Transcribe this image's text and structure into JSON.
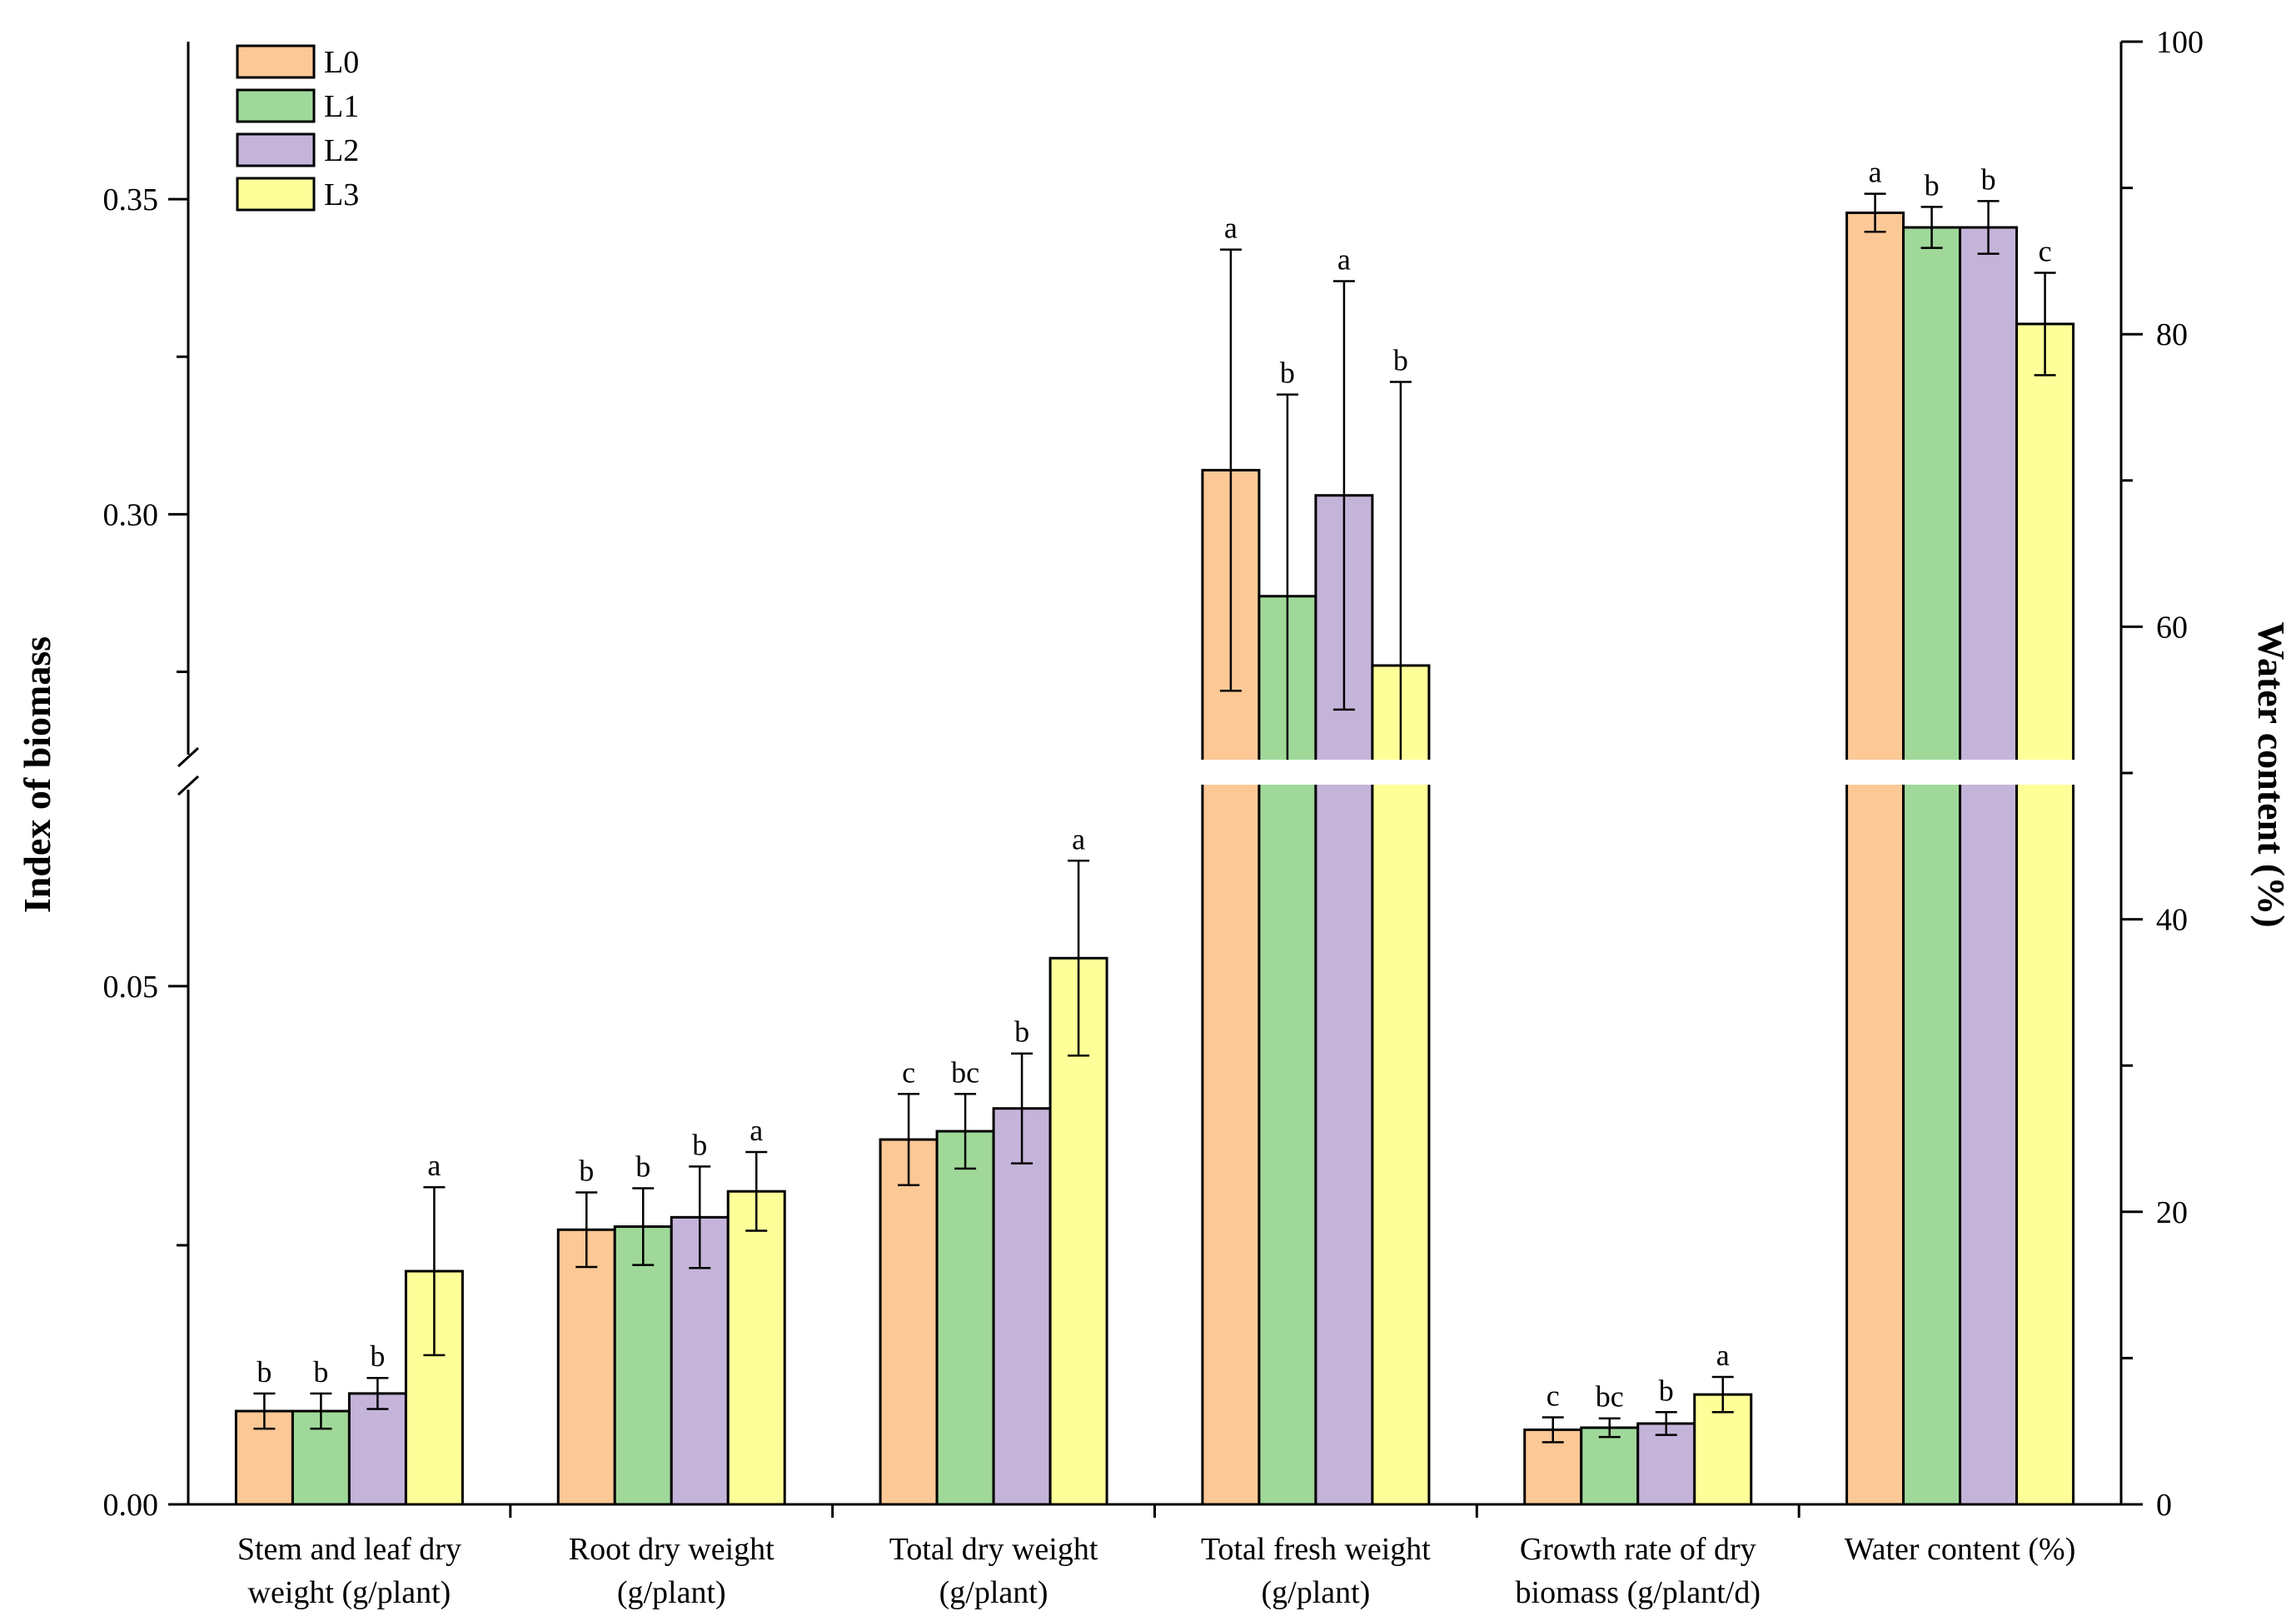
{
  "chart_data": {
    "type": "bar",
    "ylabel": "Index of biomass",
    "y2label": "Water content (%)",
    "left_axis": {
      "break": true,
      "lower_segment_range": [
        0,
        0.07
      ],
      "upper_segment_range": [
        0.26,
        0.375
      ],
      "tick_labels": [
        "0.00",
        "0.05",
        "0.30",
        "0.35"
      ],
      "tick_values": [
        0,
        0.05,
        0.3,
        0.35
      ]
    },
    "right_axis": {
      "range": [
        0,
        100
      ],
      "tick_labels": [
        "0",
        "20",
        "40",
        "60",
        "80",
        "100"
      ],
      "tick_values": [
        0,
        20,
        40,
        60,
        80,
        100
      ]
    },
    "categories": [
      [
        "Stem and leaf dry",
        "weight (g/plant)"
      ],
      [
        "Root dry weight",
        "(g/plant)"
      ],
      [
        "Total dry weight",
        "(g/plant)"
      ],
      [
        "Total fresh weight",
        "(g/plant)"
      ],
      [
        "Growth rate of dry",
        "biomass (g/plant/d)"
      ],
      [
        "Water content (%)"
      ]
    ],
    "category_axis": [
      "left",
      "left",
      "left",
      "left",
      "left",
      "right"
    ],
    "series": [
      {
        "name": "L0",
        "color": "#FCC896",
        "values": [
          0.009,
          0.0265,
          0.0352,
          0.307,
          0.0072,
          88.3
        ],
        "errors": [
          0.0017,
          0.0036,
          0.0044,
          0.035,
          0.0012,
          1.3
        ],
        "letters": [
          "b",
          "b",
          "c",
          "a",
          "c",
          "a"
        ]
      },
      {
        "name": "L1",
        "color": "#A0D89A",
        "values": [
          0.009,
          0.0268,
          0.036,
          0.287,
          0.0074,
          87.3
        ],
        "errors": [
          0.0017,
          0.0037,
          0.0036,
          0.032,
          0.0009,
          1.4
        ],
        "letters": [
          "b",
          "b",
          "bc",
          "b",
          "bc",
          "b"
        ]
      },
      {
        "name": "L2",
        "color": "#C5B4DA",
        "values": [
          0.0107,
          0.0277,
          0.0382,
          0.303,
          0.0078,
          87.3
        ],
        "errors": [
          0.0015,
          0.0049,
          0.0053,
          0.034,
          0.0011,
          1.8
        ],
        "letters": [
          "b",
          "b",
          "b",
          "a",
          "b",
          "b"
        ]
      },
      {
        "name": "L3",
        "color": "#FFFF99",
        "values": [
          0.0225,
          0.0302,
          0.0527,
          0.276,
          0.0106,
          80.7
        ],
        "errors": [
          0.0081,
          0.0038,
          0.0094,
          0.045,
          0.0017,
          3.5
        ],
        "letters": [
          "a",
          "a",
          "a",
          "b",
          "a",
          "c"
        ]
      }
    ],
    "legend": "top-left",
    "grid": false
  }
}
